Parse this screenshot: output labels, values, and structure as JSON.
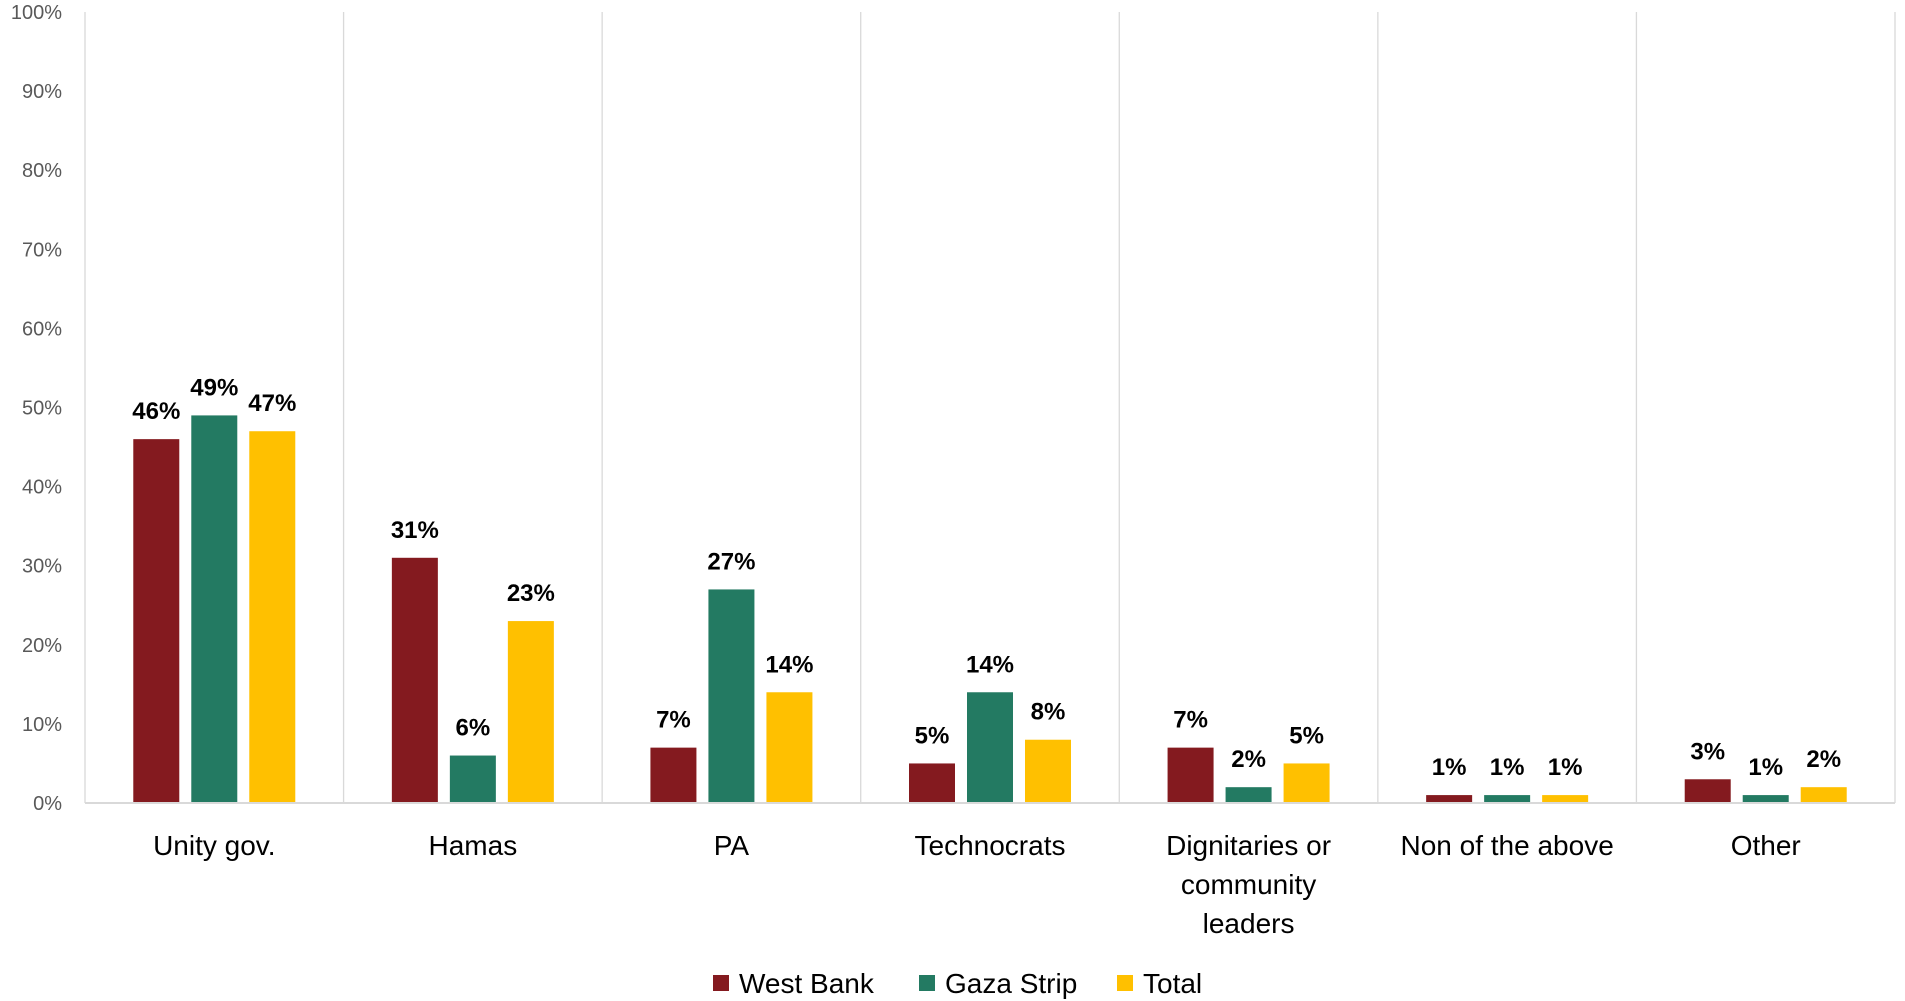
{
  "chart_data": {
    "type": "bar",
    "categories": [
      "Unity gov.",
      "Hamas",
      "PA",
      "Technocrats",
      "Dignitaries or community leaders",
      "Non of the above",
      "Other"
    ],
    "category_lines": [
      [
        "Unity gov."
      ],
      [
        "Hamas"
      ],
      [
        "PA"
      ],
      [
        "Technocrats"
      ],
      [
        "Dignitaries or",
        "community",
        "leaders"
      ],
      [
        "Non of the above"
      ],
      [
        "Other"
      ]
    ],
    "series": [
      {
        "name": "West Bank",
        "color": "#841A1F",
        "values": [
          46,
          31,
          7,
          5,
          7,
          1,
          3
        ],
        "labels": [
          "46%",
          "31%",
          "7%",
          "5%",
          "7%",
          "1%",
          "3%"
        ]
      },
      {
        "name": "Gaza Strip",
        "color": "#237A62",
        "values": [
          49,
          6,
          27,
          14,
          2,
          1,
          1
        ],
        "labels": [
          "49%",
          "6%",
          "27%",
          "14%",
          "2%",
          "1%",
          "1%"
        ]
      },
      {
        "name": "Total",
        "color": "#FFC000",
        "values": [
          47,
          23,
          14,
          8,
          5,
          1,
          2
        ],
        "labels": [
          "47%",
          "23%",
          "14%",
          "8%",
          "5%",
          "1%",
          "2%"
        ]
      }
    ],
    "ylim": [
      0,
      100
    ],
    "yticks": [
      0,
      10,
      20,
      30,
      40,
      50,
      60,
      70,
      80,
      90,
      100
    ],
    "ytick_labels": [
      "0%",
      "10%",
      "20%",
      "30%",
      "40%",
      "50%",
      "60%",
      "70%",
      "80%",
      "90%",
      "100%"
    ],
    "grid": "vertical category separators",
    "legend_position": "bottom-center",
    "title": "",
    "xlabel": "",
    "ylabel": ""
  }
}
